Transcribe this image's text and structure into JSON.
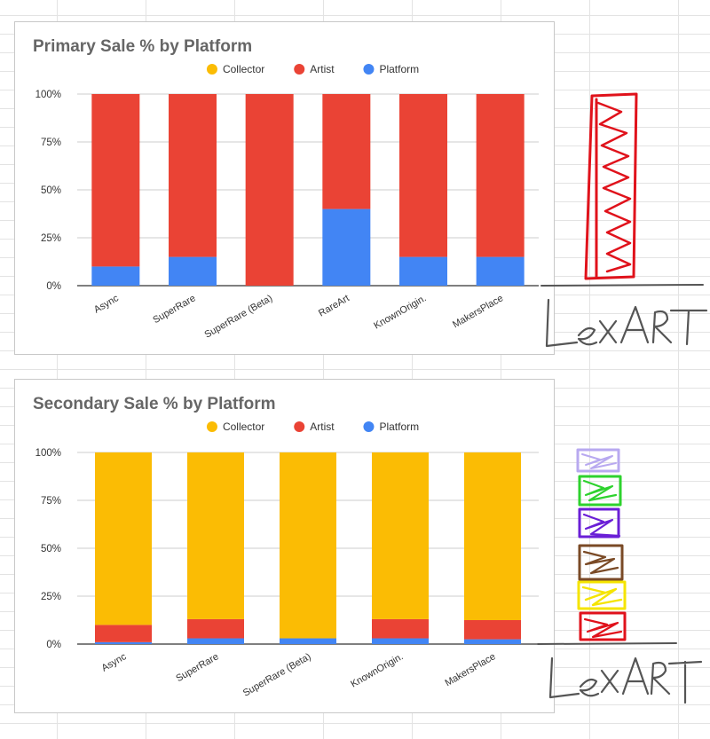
{
  "chart_data": [
    {
      "type": "bar",
      "stacked": true,
      "title": "Primary Sale % by Platform",
      "legend": [
        "Collector",
        "Artist",
        "Platform"
      ],
      "legend_position": "top",
      "categories": [
        "Async",
        "SuperRare",
        "SuperRare (Beta)",
        "RareArt",
        "KnownOrigin.",
        "MakersPlace"
      ],
      "series": [
        {
          "name": "Platform",
          "color": "#4285F4",
          "values": [
            10,
            15,
            0,
            40,
            15,
            15
          ]
        },
        {
          "name": "Artist",
          "color": "#EA4335",
          "values": [
            90,
            85,
            100,
            60,
            85,
            85
          ]
        },
        {
          "name": "Collector",
          "color": "#FBBC04",
          "values": [
            0,
            0,
            0,
            0,
            0,
            0
          ]
        }
      ],
      "yticks": [
        "0%",
        "25%",
        "50%",
        "75%",
        "100%"
      ],
      "ylim": [
        0,
        100
      ],
      "grid": true
    },
    {
      "type": "bar",
      "stacked": true,
      "title": "Secondary Sale % by Platform",
      "legend": [
        "Collector",
        "Artist",
        "Platform"
      ],
      "legend_position": "top",
      "categories": [
        "Async",
        "SuperRare",
        "SuperRare (Beta)",
        "KnownOrigin.",
        "MakersPlace"
      ],
      "series": [
        {
          "name": "Platform",
          "color": "#4285F4",
          "values": [
            1,
            3,
            3,
            3,
            2.5
          ]
        },
        {
          "name": "Artist",
          "color": "#EA4335",
          "values": [
            9,
            10,
            0,
            10,
            10
          ]
        },
        {
          "name": "Collector",
          "color": "#FBBC04",
          "values": [
            90,
            87,
            97,
            87,
            87.5
          ]
        }
      ],
      "yticks": [
        "0%",
        "25%",
        "50%",
        "75%",
        "100%"
      ],
      "ylim": [
        0,
        100
      ],
      "grid": true
    }
  ],
  "annotations": {
    "signature_top": "LEXART",
    "signature_bottom": "LEXART",
    "swatch_colors": [
      "#b8a9f0",
      "#2ed22e",
      "#6a1fd6",
      "#7a4a26",
      "#f5e400",
      "#e0121b"
    ],
    "doodle_bar_color": "#e0121b"
  }
}
